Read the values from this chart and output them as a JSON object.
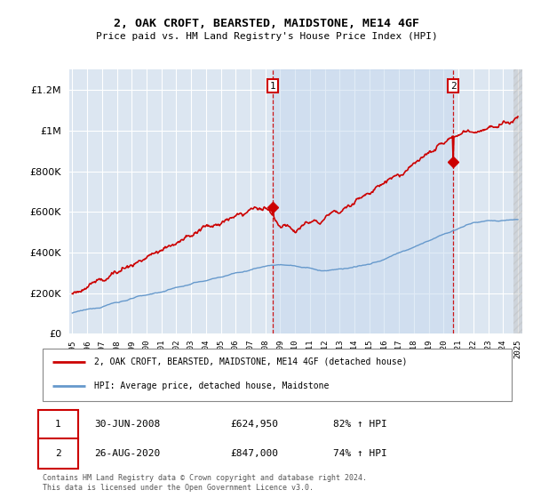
{
  "title": "2, OAK CROFT, BEARSTED, MAIDSTONE, ME14 4GF",
  "subtitle": "Price paid vs. HM Land Registry's House Price Index (HPI)",
  "background_color": "#ffffff",
  "plot_bg_color": "#dce6f1",
  "grid_color": "#ffffff",
  "shade_color": "#c5d8ef",
  "ylim": [
    0,
    1300000
  ],
  "yticks": [
    0,
    200000,
    400000,
    600000,
    800000,
    1000000,
    1200000
  ],
  "ytick_labels": [
    "£0",
    "£200K",
    "£400K",
    "£600K",
    "£800K",
    "£1M",
    "£1.2M"
  ],
  "x_start_year": 1995,
  "x_end_year": 2025,
  "red_line_color": "#cc0000",
  "blue_line_color": "#6699cc",
  "marker1_date": 2008.5,
  "marker1_value": 624950,
  "marker2_date": 2020.65,
  "marker2_value": 847000,
  "dashed_line_color": "#cc0000",
  "legend_red_label": "2, OAK CROFT, BEARSTED, MAIDSTONE, ME14 4GF (detached house)",
  "legend_blue_label": "HPI: Average price, detached house, Maidstone",
  "copyright_text": "Contains HM Land Registry data © Crown copyright and database right 2024.\nThis data is licensed under the Open Government Licence v3.0."
}
